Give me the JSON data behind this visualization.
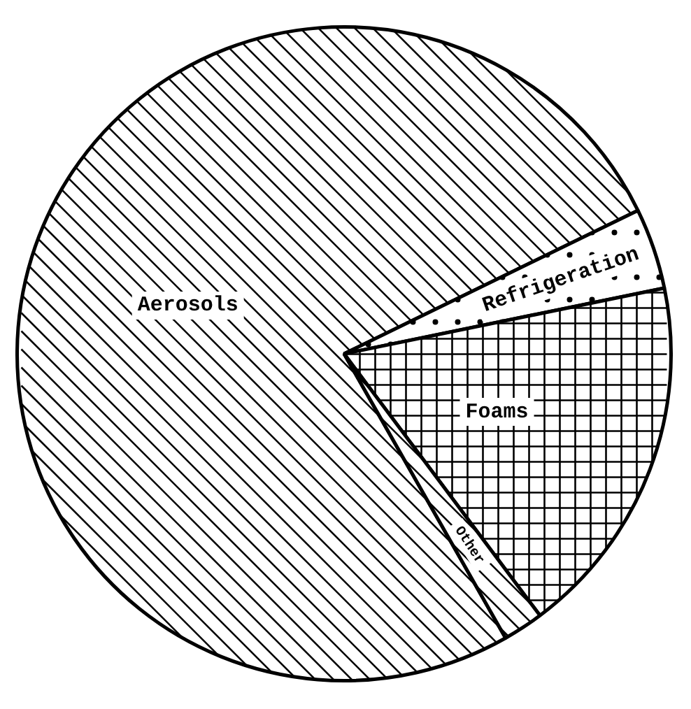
{
  "chart_data": {
    "type": "pie",
    "categories": [
      "Aerosols",
      "Refrigeration",
      "Foams",
      "Other"
    ],
    "values": [
      76,
      4,
      18,
      2
    ],
    "colors": [
      "#ffffff",
      "#ffffff",
      "#ffffff",
      "#ffffff"
    ]
  }
}
